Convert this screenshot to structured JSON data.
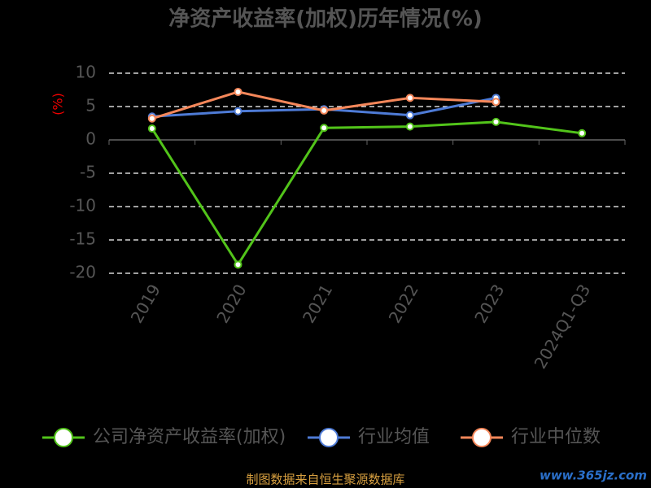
{
  "chart_data": {
    "type": "line",
    "title": "净资产收益率(加权)历年情况(%)",
    "y_label": "(%)",
    "categories": [
      "2019",
      "2020",
      "2021",
      "2022",
      "2023",
      "2024Q1-Q3"
    ],
    "series": [
      {
        "name": "公司净资产收益率(加权)",
        "color": "#52c41a",
        "values": [
          1.7,
          -18.7,
          1.8,
          2.0,
          2.7,
          1.0
        ]
      },
      {
        "name": "行业均值",
        "color": "#4e7bd6",
        "values": [
          3.5,
          4.3,
          4.6,
          3.7,
          6.3,
          null
        ]
      },
      {
        "name": "行业中位数",
        "color": "#f5875a",
        "values": [
          3.2,
          7.2,
          4.4,
          6.3,
          5.7,
          null
        ]
      }
    ],
    "ylim": [
      -20,
      10
    ],
    "yticks": [
      -20,
      -15,
      -10,
      -5,
      0,
      5,
      10
    ],
    "grid": true,
    "legend": "bottom",
    "source": "制图数据来自恒生聚源数据库",
    "watermark": "www.365jz.com"
  }
}
